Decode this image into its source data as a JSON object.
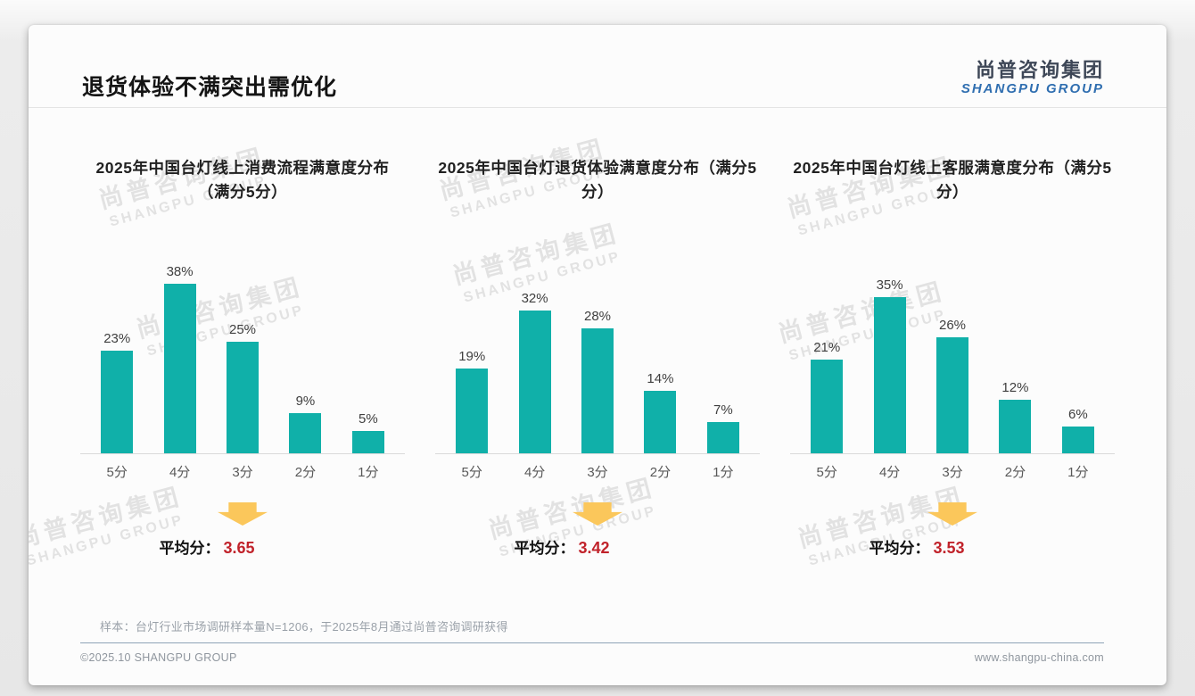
{
  "slide": {
    "title": "退货体验不满突出需优化",
    "logo": {
      "cn": "尚普咨询集团",
      "en": "SHANGPU GROUP"
    },
    "watermark": {
      "cn": "尚普咨询集团",
      "en": "SHANGPU GROUP"
    },
    "average_label": "平均分：",
    "footnote": "样本：台灯行业市场调研样本量N=1206，于2025年8月通过尚普咨询调研获得",
    "copyright": "©2025.10 SHANGPU GROUP",
    "website": "www.shangpu-china.com"
  },
  "colors": {
    "bar": "#10b0a9",
    "arrow": "#fbc75b",
    "average_value": "#c1232b",
    "logo_en": "#2f6eb0"
  },
  "chart_data": [
    {
      "type": "bar",
      "title": "2025年中国台灯线上消费流程满意度分布（满分5分）",
      "categories": [
        "5分",
        "4分",
        "3分",
        "2分",
        "1分"
      ],
      "values": [
        23,
        38,
        25,
        9,
        5
      ],
      "value_suffix": "%",
      "average": "3.65",
      "ylim": [
        0,
        40
      ],
      "grid": false,
      "legend": false
    },
    {
      "type": "bar",
      "title": "2025年中国台灯退货体验满意度分布（满分5分）",
      "categories": [
        "5分",
        "4分",
        "3分",
        "2分",
        "1分"
      ],
      "values": [
        19,
        32,
        28,
        14,
        7
      ],
      "value_suffix": "%",
      "average": "3.42",
      "ylim": [
        0,
        40
      ],
      "grid": false,
      "legend": false
    },
    {
      "type": "bar",
      "title": "2025年中国台灯线上客服满意度分布（满分5分）",
      "categories": [
        "5分",
        "4分",
        "3分",
        "2分",
        "1分"
      ],
      "values": [
        21,
        35,
        26,
        12,
        6
      ],
      "value_suffix": "%",
      "average": "3.53",
      "ylim": [
        0,
        40
      ],
      "grid": false,
      "legend": false
    }
  ]
}
